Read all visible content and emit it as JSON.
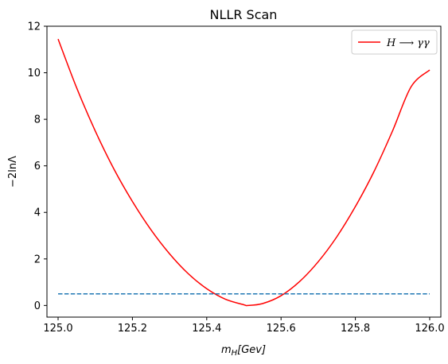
{
  "chart_data": {
    "type": "line",
    "title": "NLLR Scan",
    "xlabel": "m_H[Gev]",
    "ylabel": "−2lnΛ",
    "xlim": [
      124.97,
      126.03
    ],
    "ylim": [
      -0.5,
      12
    ],
    "x_ticks": [
      "125.0",
      "125.2",
      "125.4",
      "125.6",
      "125.8",
      "126.0"
    ],
    "y_ticks": [
      "0",
      "2",
      "4",
      "6",
      "8",
      "10",
      "12"
    ],
    "grid": false,
    "legend_position": "top-right",
    "series": [
      {
        "name": "H ⟶ γγ",
        "color": "#ff0000",
        "style": "solid",
        "x": [
          125.0,
          125.05,
          125.1,
          125.15,
          125.2,
          125.25,
          125.3,
          125.35,
          125.4,
          125.45,
          125.5,
          125.51,
          125.55,
          125.6,
          125.65,
          125.7,
          125.75,
          125.8,
          125.85,
          125.9,
          125.95,
          126.0
        ],
        "y": [
          11.45,
          9.35,
          7.5,
          5.87,
          4.47,
          3.25,
          2.22,
          1.37,
          0.72,
          0.27,
          0.03,
          0.0,
          0.08,
          0.42,
          1.03,
          1.88,
          2.95,
          4.25,
          5.75,
          7.5,
          9.4,
          10.12
        ]
      },
      {
        "name": "",
        "color": "#1f77b4",
        "style": "dashed",
        "x": [
          125.0,
          126.0
        ],
        "y": [
          0.5,
          0.5
        ]
      }
    ]
  }
}
